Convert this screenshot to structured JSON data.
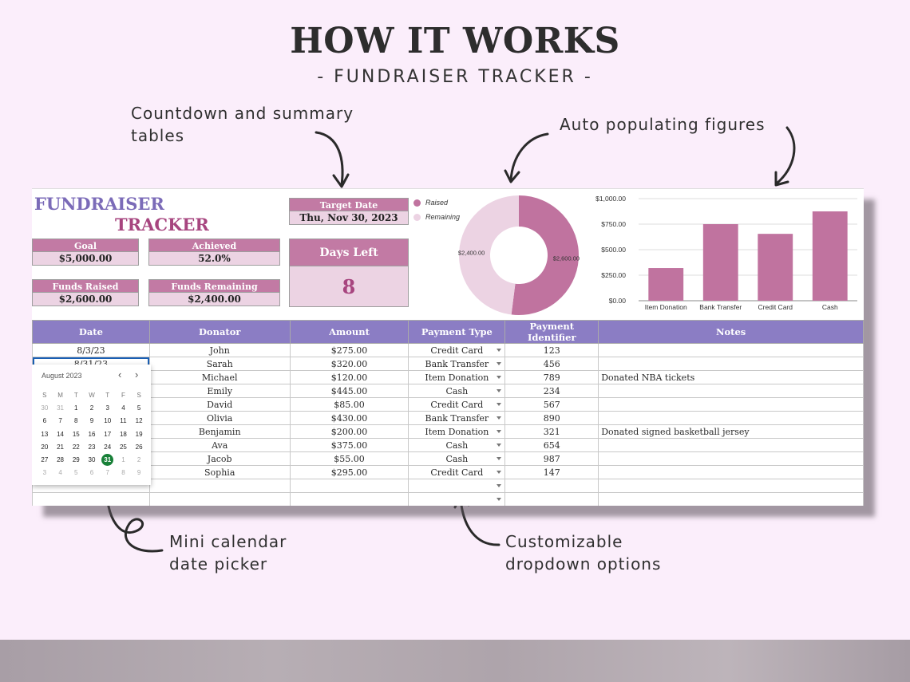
{
  "header": {
    "title": "HOW IT WORKS",
    "subtitle": "- FUNDRAISER TRACKER -"
  },
  "callouts": {
    "countdown": [
      "Countdown and summary",
      "tables"
    ],
    "auto": "Auto populating figures",
    "calendar": [
      "Mini calendar",
      "date picker"
    ],
    "dropdown": [
      "Customizable",
      "dropdown options"
    ]
  },
  "sheet": {
    "title_line1": "FUNDRAISER",
    "title_line2": "TRACKER",
    "cards": {
      "goal": {
        "label": "Goal",
        "value": "$5,000.00"
      },
      "achieved": {
        "label": "Achieved",
        "value": "52.0%"
      },
      "funds_raised": {
        "label": "Funds Raised",
        "value": "$2,600.00"
      },
      "funds_remaining": {
        "label": "Funds Remaining",
        "value": "$2,400.00"
      },
      "target_date": {
        "label": "Target Date",
        "value": "Thu, Nov 30, 2023"
      },
      "days_left": {
        "label": "Days Left",
        "value": "8"
      }
    },
    "legend": [
      {
        "label": "Raised",
        "color": "#c0739f"
      },
      {
        "label": "Remaining",
        "color": "#ecd3e3"
      }
    ],
    "table": {
      "columns": [
        "Date",
        "Donator",
        "Amount",
        "Payment Type",
        "Payment Identifier",
        "Notes"
      ],
      "rows": [
        [
          "8/3/23",
          "John",
          "$275.00",
          "Credit Card",
          "123",
          ""
        ],
        [
          "8/31/23",
          "Sarah",
          "$320.00",
          "Bank Transfer",
          "456",
          ""
        ],
        [
          "",
          "Michael",
          "$120.00",
          "Item Donation",
          "789",
          "Donated NBA tickets"
        ],
        [
          "",
          "Emily",
          "$445.00",
          "Cash",
          "234",
          ""
        ],
        [
          "",
          "David",
          "$85.00",
          "Credit Card",
          "567",
          ""
        ],
        [
          "",
          "Olivia",
          "$430.00",
          "Bank Transfer",
          "890",
          ""
        ],
        [
          "",
          "Benjamin",
          "$200.00",
          "Item Donation",
          "321",
          "Donated signed basketball jersey"
        ],
        [
          "",
          "Ava",
          "$375.00",
          "Cash",
          "654",
          ""
        ],
        [
          "",
          "Jacob",
          "$55.00",
          "Cash",
          "987",
          ""
        ],
        [
          "",
          "Sophia",
          "$295.00",
          "Credit Card",
          "147",
          ""
        ],
        [
          "",
          "",
          "",
          "",
          "",
          ""
        ],
        [
          "",
          "",
          "",
          "",
          "",
          ""
        ],
        [
          "",
          "",
          "",
          "",
          "",
          ""
        ]
      ]
    },
    "calendar": {
      "month_label": "August 2023",
      "prev": "‹",
      "next": "›",
      "weekdays": [
        "S",
        "M",
        "T",
        "W",
        "T",
        "F",
        "S"
      ],
      "weeks": [
        [
          "30",
          "31",
          "1",
          "2",
          "3",
          "4",
          "5"
        ],
        [
          "6",
          "7",
          "8",
          "9",
          "10",
          "11",
          "12"
        ],
        [
          "13",
          "14",
          "15",
          "16",
          "17",
          "18",
          "19"
        ],
        [
          "20",
          "21",
          "22",
          "23",
          "24",
          "25",
          "26"
        ],
        [
          "27",
          "28",
          "29",
          "30",
          "31",
          "1",
          "2"
        ],
        [
          "3",
          "4",
          "5",
          "6",
          "7",
          "8",
          "9"
        ]
      ],
      "selected": "31"
    }
  },
  "chart_data": [
    {
      "type": "pie",
      "variant": "donut",
      "categories": [
        "Raised",
        "Remaining"
      ],
      "values": [
        2600,
        2400
      ],
      "data_labels": [
        "$2,600.00",
        "$2,400.00"
      ],
      "colors": [
        "#c0739f",
        "#ecd3e3"
      ],
      "legend": "top-left"
    },
    {
      "type": "bar",
      "categories": [
        "Item Donation",
        "Bank Transfer",
        "Credit Card",
        "Cash"
      ],
      "values": [
        320,
        750,
        655,
        875
      ],
      "ylim": [
        0,
        1000
      ],
      "yticks": [
        "$0.00",
        "$250.00",
        "$500.00",
        "$750.00",
        "$1,000.00"
      ],
      "ytick_values": [
        0,
        250,
        500,
        750,
        1000
      ],
      "grid": true,
      "color": "#c0739f"
    }
  ]
}
